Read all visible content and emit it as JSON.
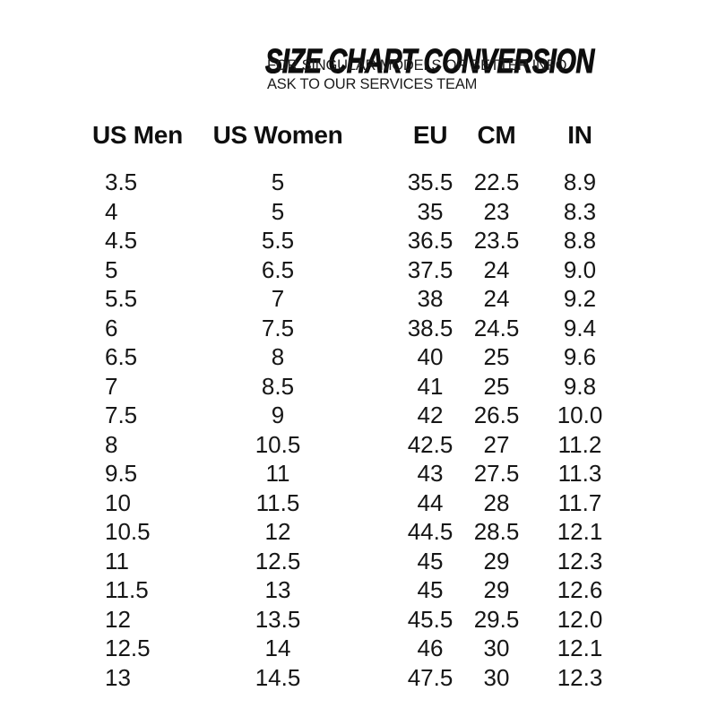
{
  "header": {
    "title": "SIZE CHART CONVERSION",
    "subtitle_line1": "FOR SINGULAR MODELS OR BETTER INFO",
    "subtitle_line2": "ASK TO OUR SERVICES TEAM"
  },
  "chart_data": {
    "type": "table",
    "columns": [
      "US Men",
      "US Women",
      "EU",
      "CM",
      "IN"
    ],
    "rows": [
      [
        "3.5",
        "5",
        "35.5",
        "22.5",
        "8.9"
      ],
      [
        "4",
        "5",
        "35",
        "23",
        "8.3"
      ],
      [
        "4.5",
        "5.5",
        "36.5",
        "23.5",
        "8.8"
      ],
      [
        "5",
        "6.5",
        "37.5",
        "24",
        "9.0"
      ],
      [
        "5.5",
        "7",
        "38",
        "24",
        "9.2"
      ],
      [
        "6",
        "7.5",
        "38.5",
        "24.5",
        "9.4"
      ],
      [
        "6.5",
        "8",
        "40",
        "25",
        "9.6"
      ],
      [
        "7",
        "8.5",
        "41",
        "25",
        "9.8"
      ],
      [
        "7.5",
        "9",
        "42",
        "26.5",
        "10.0"
      ],
      [
        "8",
        "10.5",
        "42.5",
        "27",
        "11.2"
      ],
      [
        "9.5",
        "11",
        "43",
        "27.5",
        "11.3"
      ],
      [
        "10",
        "11.5",
        "44",
        "28",
        "11.7"
      ],
      [
        "10.5",
        "12",
        "44.5",
        "28.5",
        "12.1"
      ],
      [
        "11",
        "12.5",
        "45",
        "29",
        "12.3"
      ],
      [
        "11.5",
        "13",
        "45",
        "29",
        "12.6"
      ],
      [
        "12",
        "13.5",
        "45.5",
        "29.5",
        "12.0"
      ],
      [
        "12.5",
        "14",
        "46",
        "30",
        "12.1"
      ],
      [
        "13",
        "14.5",
        "47.5",
        "30",
        "12.3"
      ]
    ]
  },
  "colors": {
    "background": "#ffffff",
    "title_text": "#0d0d0d",
    "body_text": "#161616"
  }
}
